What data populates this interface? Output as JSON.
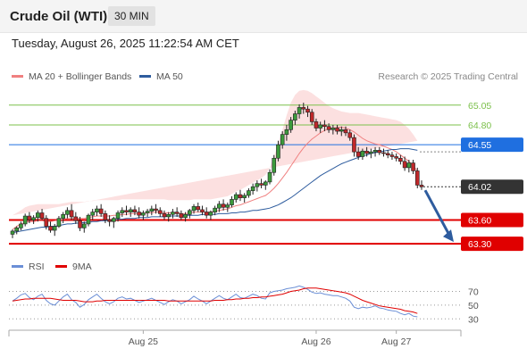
{
  "header": {
    "instrument": "Crude Oil (WTI)",
    "timeframe": "30 MIN",
    "datetime": "Tuesday, August 26, 2025 11:22:54 AM CET"
  },
  "legend": {
    "items": [
      {
        "label": "MA 20 + Bollinger Bands",
        "color": "#f08080"
      },
      {
        "label": "MA 50",
        "color": "#2e5c9e"
      }
    ],
    "credit": "Research © 2025 Trading Central"
  },
  "rsi_legend": {
    "items": [
      {
        "label": "RSI",
        "color": "#6b8fd6"
      },
      {
        "label": "9MA",
        "color": "#e00000"
      }
    ]
  },
  "chart_data": [
    {
      "type": "candlestick",
      "title": "Crude Oil (WTI)",
      "ylim": [
        63.2,
        65.25
      ],
      "x_tick_labels": [
        "Aug 25",
        "Aug 26",
        "Aug 27"
      ],
      "levels": [
        {
          "value": 65.05,
          "label": "65.05",
          "color": "#7cc04b",
          "kind": "target",
          "has_box": false
        },
        {
          "value": 64.8,
          "label": "64.80",
          "color": "#7cc04b",
          "kind": "target",
          "has_box": false
        },
        {
          "value": 64.55,
          "label": "64.55",
          "color": "#1f6fe0",
          "kind": "pivot",
          "has_box": true
        },
        {
          "value": 64.02,
          "label": "64.02",
          "color": "#333333",
          "kind": "last",
          "has_box": true
        },
        {
          "value": 63.6,
          "label": "63.60",
          "color": "#e00000",
          "kind": "support",
          "has_box": true
        },
        {
          "value": 63.3,
          "label": "63.30",
          "color": "#e00000",
          "kind": "support",
          "has_box": true
        }
      ],
      "projection": {
        "from": 64.02,
        "to": 63.3,
        "color": "#2e5c9e"
      },
      "candles": [
        [
          63.42,
          63.48,
          63.37,
          63.46
        ],
        [
          63.46,
          63.52,
          63.42,
          63.5
        ],
        [
          63.5,
          63.58,
          63.47,
          63.55
        ],
        [
          63.55,
          63.68,
          63.52,
          63.65
        ],
        [
          63.65,
          63.7,
          63.56,
          63.6
        ],
        [
          63.6,
          63.66,
          63.55,
          63.63
        ],
        [
          63.63,
          63.72,
          63.58,
          63.69
        ],
        [
          63.69,
          63.74,
          63.6,
          63.62
        ],
        [
          63.62,
          63.66,
          63.48,
          63.52
        ],
        [
          63.52,
          63.58,
          63.44,
          63.47
        ],
        [
          63.47,
          63.55,
          63.4,
          63.52
        ],
        [
          63.52,
          63.65,
          63.5,
          63.62
        ],
        [
          63.62,
          63.7,
          63.56,
          63.67
        ],
        [
          63.67,
          63.76,
          63.62,
          63.72
        ],
        [
          63.72,
          63.8,
          63.6,
          63.64
        ],
        [
          63.64,
          63.7,
          63.55,
          63.59
        ],
        [
          63.59,
          63.64,
          63.46,
          63.5
        ],
        [
          63.5,
          63.58,
          63.44,
          63.55
        ],
        [
          63.55,
          63.68,
          63.52,
          63.66
        ],
        [
          63.66,
          63.74,
          63.6,
          63.7
        ],
        [
          63.7,
          63.78,
          63.65,
          63.74
        ],
        [
          63.74,
          63.8,
          63.64,
          63.68
        ],
        [
          63.68,
          63.72,
          63.56,
          63.6
        ],
        [
          63.6,
          63.66,
          63.52,
          63.58
        ],
        [
          63.58,
          63.64,
          63.5,
          63.62
        ],
        [
          63.62,
          63.72,
          63.58,
          63.69
        ],
        [
          63.69,
          63.76,
          63.64,
          63.72
        ],
        [
          63.72,
          63.78,
          63.66,
          63.7
        ],
        [
          63.7,
          63.76,
          63.64,
          63.73
        ],
        [
          63.73,
          63.78,
          63.66,
          63.7
        ],
        [
          63.7,
          63.76,
          63.62,
          63.66
        ],
        [
          63.66,
          63.72,
          63.6,
          63.69
        ],
        [
          63.69,
          63.74,
          63.64,
          63.71
        ],
        [
          63.71,
          63.78,
          63.66,
          63.74
        ],
        [
          63.74,
          63.8,
          63.68,
          63.72
        ],
        [
          63.72,
          63.76,
          63.64,
          63.68
        ],
        [
          63.68,
          63.72,
          63.6,
          63.64
        ],
        [
          63.64,
          63.7,
          63.58,
          63.67
        ],
        [
          63.67,
          63.74,
          63.62,
          63.7
        ],
        [
          63.7,
          63.76,
          63.64,
          63.68
        ],
        [
          63.68,
          63.72,
          63.6,
          63.63
        ],
        [
          63.63,
          63.7,
          63.58,
          63.67
        ],
        [
          63.67,
          63.74,
          63.62,
          63.72
        ],
        [
          63.72,
          63.8,
          63.68,
          63.77
        ],
        [
          63.77,
          63.82,
          63.7,
          63.73
        ],
        [
          63.73,
          63.78,
          63.66,
          63.7
        ],
        [
          63.7,
          63.76,
          63.62,
          63.66
        ],
        [
          63.66,
          63.72,
          63.6,
          63.7
        ],
        [
          63.7,
          63.78,
          63.66,
          63.75
        ],
        [
          63.75,
          63.84,
          63.7,
          63.8
        ],
        [
          63.8,
          63.86,
          63.72,
          63.76
        ],
        [
          63.76,
          63.82,
          63.7,
          63.79
        ],
        [
          63.79,
          63.9,
          63.76,
          63.86
        ],
        [
          63.86,
          63.95,
          63.82,
          63.92
        ],
        [
          63.92,
          63.98,
          63.84,
          63.88
        ],
        [
          63.88,
          63.94,
          63.82,
          63.91
        ],
        [
          63.91,
          64.0,
          63.88,
          63.97
        ],
        [
          63.97,
          64.06,
          63.92,
          64.02
        ],
        [
          64.02,
          64.1,
          63.96,
          64.06
        ],
        [
          64.06,
          64.12,
          64.0,
          64.04
        ],
        [
          64.04,
          64.1,
          63.98,
          64.08
        ],
        [
          64.08,
          64.24,
          64.05,
          64.2
        ],
        [
          64.2,
          64.42,
          64.16,
          64.38
        ],
        [
          64.38,
          64.6,
          64.34,
          64.55
        ],
        [
          64.55,
          64.72,
          64.5,
          64.68
        ],
        [
          64.68,
          64.8,
          64.6,
          64.74
        ],
        [
          64.74,
          64.9,
          64.7,
          64.86
        ],
        [
          64.86,
          64.98,
          64.8,
          64.94
        ],
        [
          64.94,
          65.06,
          64.88,
          65.02
        ],
        [
          65.02,
          65.08,
          64.94,
          65.0
        ],
        [
          65.0,
          65.04,
          64.9,
          64.96
        ],
        [
          64.96,
          65.0,
          64.8,
          64.84
        ],
        [
          64.84,
          64.88,
          64.72,
          64.76
        ],
        [
          64.76,
          64.84,
          64.7,
          64.8
        ],
        [
          64.8,
          64.86,
          64.72,
          64.78
        ],
        [
          64.78,
          64.82,
          64.7,
          64.74
        ],
        [
          64.74,
          64.8,
          64.68,
          64.76
        ],
        [
          64.76,
          64.8,
          64.68,
          64.72
        ],
        [
          64.72,
          64.78,
          64.66,
          64.74
        ],
        [
          64.74,
          64.78,
          64.66,
          64.7
        ],
        [
          64.7,
          64.74,
          64.6,
          64.64
        ],
        [
          64.64,
          64.68,
          64.4,
          64.46
        ],
        [
          64.46,
          64.52,
          64.36,
          64.4
        ],
        [
          64.4,
          64.5,
          64.36,
          64.47
        ],
        [
          64.47,
          64.52,
          64.4,
          64.44
        ],
        [
          64.44,
          64.5,
          64.38,
          64.46
        ],
        [
          64.46,
          64.52,
          64.4,
          64.48
        ],
        [
          64.48,
          64.52,
          64.42,
          64.45
        ],
        [
          64.45,
          64.5,
          64.4,
          64.44
        ],
        [
          64.44,
          64.48,
          64.38,
          64.42
        ],
        [
          64.42,
          64.46,
          64.36,
          64.4
        ],
        [
          64.4,
          64.44,
          64.34,
          64.38
        ],
        [
          64.38,
          64.42,
          64.3,
          64.34
        ],
        [
          64.34,
          64.4,
          64.22,
          64.26
        ],
        [
          64.26,
          64.36,
          64.2,
          64.32
        ],
        [
          64.32,
          64.36,
          64.18,
          64.22
        ],
        [
          64.22,
          64.26,
          64.0,
          64.04
        ],
        [
          64.04,
          64.1,
          63.98,
          64.02
        ]
      ],
      "bollinger_mid": [
        63.48,
        63.52,
        63.55,
        63.57,
        63.58,
        63.58,
        63.59,
        63.59,
        63.58,
        63.58,
        63.59,
        63.6,
        63.61,
        63.62,
        63.62,
        63.62,
        63.62,
        63.62,
        63.63,
        63.64,
        63.65,
        63.65,
        63.65,
        63.65,
        63.66,
        63.66,
        63.67,
        63.67,
        63.68,
        63.68,
        63.68,
        63.68,
        63.69,
        63.69,
        63.7,
        63.7,
        63.69,
        63.69,
        63.69,
        63.69,
        63.68,
        63.68,
        63.69,
        63.7,
        63.7,
        63.7,
        63.7,
        63.7,
        63.71,
        63.72,
        63.73,
        63.74,
        63.76,
        63.78,
        63.79,
        63.81,
        63.83,
        63.85,
        63.87,
        63.89,
        63.91,
        63.95,
        64.0,
        64.06,
        64.13,
        64.2,
        64.28,
        64.36,
        64.44,
        64.51,
        64.57,
        64.62,
        64.66,
        64.7,
        64.73,
        64.75,
        64.76,
        64.77,
        64.77,
        64.76,
        64.74,
        64.71,
        64.67,
        64.63,
        64.6,
        64.58,
        64.56,
        64.55,
        64.53,
        64.51,
        64.49,
        64.46,
        64.42,
        64.38,
        64.34,
        64.28,
        64.22
      ],
      "bollinger_upper": [
        63.66,
        63.69,
        63.72,
        63.76,
        63.78,
        63.79,
        63.8,
        63.8,
        63.8,
        63.8,
        63.8,
        63.8,
        63.81,
        63.82,
        63.83,
        63.83,
        63.83,
        63.83,
        63.84,
        63.84,
        63.85,
        63.85,
        63.85,
        63.85,
        63.85,
        63.85,
        63.86,
        63.86,
        63.86,
        63.86,
        63.86,
        63.86,
        63.86,
        63.86,
        63.86,
        63.86,
        63.86,
        63.85,
        63.85,
        63.85,
        63.85,
        63.85,
        63.85,
        63.86,
        63.86,
        63.86,
        63.86,
        63.86,
        63.87,
        63.88,
        63.89,
        63.9,
        63.93,
        63.96,
        63.98,
        64.01,
        64.04,
        64.07,
        64.1,
        64.13,
        64.17,
        64.26,
        64.4,
        64.56,
        64.74,
        64.92,
        65.08,
        65.18,
        65.23,
        65.24,
        65.23,
        65.2,
        65.16,
        65.12,
        65.08,
        65.04,
        65.01,
        64.99,
        64.97,
        64.96,
        64.95,
        64.95,
        64.95,
        64.94,
        64.93,
        64.92,
        64.91,
        64.9,
        64.89,
        64.88,
        64.87,
        64.86,
        64.84,
        64.8,
        64.75,
        64.68,
        64.6
      ],
      "bollinger_lower": [
        63.3,
        63.32,
        63.35,
        63.38,
        63.4,
        63.41,
        63.42,
        63.43,
        63.43,
        63.43,
        63.43,
        63.44,
        63.45,
        63.46,
        63.46,
        63.46,
        63.46,
        63.46,
        63.47,
        63.48,
        63.49,
        63.5,
        63.5,
        63.51,
        63.52,
        63.52,
        63.53,
        63.53,
        63.54,
        63.54,
        63.55,
        63.55,
        63.55,
        63.56,
        63.56,
        63.56,
        63.56,
        63.55,
        63.55,
        63.55,
        63.54,
        63.54,
        63.55,
        63.55,
        63.56,
        63.56,
        63.56,
        63.57,
        63.57,
        63.58,
        63.58,
        63.59,
        63.6,
        63.61,
        63.62,
        63.63,
        63.63,
        63.64,
        63.65,
        63.66,
        63.66,
        63.66,
        63.64,
        63.62,
        63.6,
        63.58,
        63.57,
        63.58,
        63.62,
        63.7,
        63.82,
        63.96,
        64.1,
        64.24,
        64.36,
        64.46,
        64.52,
        64.56,
        64.58,
        64.58,
        64.56,
        64.48,
        64.4,
        64.34,
        64.3,
        64.28,
        64.26,
        64.24,
        64.22,
        64.2,
        64.18,
        64.14,
        64.1,
        64.05,
        64.0,
        63.95,
        63.9
      ],
      "ma50": [
        63.44,
        63.45,
        63.46,
        63.47,
        63.48,
        63.49,
        63.5,
        63.51,
        63.51,
        63.52,
        63.52,
        63.53,
        63.54,
        63.55,
        63.55,
        63.56,
        63.56,
        63.57,
        63.57,
        63.58,
        63.58,
        63.59,
        63.59,
        63.6,
        63.6,
        63.61,
        63.61,
        63.62,
        63.62,
        63.62,
        63.63,
        63.63,
        63.63,
        63.64,
        63.64,
        63.64,
        63.64,
        63.65,
        63.65,
        63.65,
        63.65,
        63.66,
        63.66,
        63.66,
        63.66,
        63.67,
        63.67,
        63.67,
        63.67,
        63.68,
        63.68,
        63.68,
        63.69,
        63.69,
        63.7,
        63.7,
        63.71,
        63.72,
        63.72,
        63.73,
        63.74,
        63.75,
        63.77,
        63.79,
        63.82,
        63.85,
        63.88,
        63.92,
        63.96,
        64.0,
        64.04,
        64.08,
        64.12,
        64.16,
        64.19,
        64.22,
        64.25,
        64.28,
        64.31,
        64.33,
        64.35,
        64.37,
        64.39,
        64.41,
        64.42,
        64.44,
        64.45,
        64.46,
        64.47,
        64.48,
        64.49,
        64.49,
        64.5,
        64.5,
        64.5,
        64.49,
        64.48
      ]
    },
    {
      "type": "line",
      "title": "",
      "ylim": [
        20,
        85
      ],
      "y_ticks": [
        30,
        50,
        70
      ],
      "series": [
        {
          "name": "RSI",
          "color": "#6b8fd6",
          "values": [
            56,
            60,
            65,
            67,
            61,
            58,
            63,
            66,
            57,
            52,
            50,
            56,
            62,
            66,
            58,
            54,
            47,
            51,
            58,
            62,
            66,
            60,
            55,
            52,
            55,
            60,
            62,
            59,
            60,
            57,
            54,
            56,
            58,
            60,
            57,
            54,
            51,
            55,
            58,
            56,
            52,
            55,
            58,
            63,
            59,
            56,
            52,
            56,
            60,
            64,
            60,
            58,
            62,
            66,
            61,
            60,
            63,
            66,
            64,
            60,
            59,
            68,
            70,
            71,
            72,
            74,
            75,
            76,
            78,
            76,
            73,
            69,
            67,
            68,
            66,
            65,
            64,
            64,
            62,
            60,
            56,
            47,
            45,
            47,
            46,
            47,
            49,
            46,
            45,
            43,
            42,
            41,
            38,
            36,
            38,
            34,
            33
          ]
        },
        {
          "name": "9MA",
          "color": "#e00000",
          "values": [
            56,
            57,
            58,
            59,
            59,
            60,
            60,
            60,
            60,
            60,
            59,
            58,
            57,
            57,
            57,
            57,
            56,
            55,
            55,
            55,
            56,
            56,
            57,
            57,
            57,
            57,
            57,
            57,
            57,
            57,
            57,
            57,
            57,
            57,
            57,
            57,
            57,
            56,
            56,
            56,
            56,
            56,
            56,
            56,
            56,
            56,
            56,
            56,
            57,
            57,
            57,
            58,
            58,
            59,
            59,
            60,
            60,
            61,
            61,
            62,
            62,
            63,
            64,
            65,
            66,
            68,
            70,
            71,
            72,
            74,
            75,
            75,
            75,
            74,
            73,
            72,
            71,
            70,
            69,
            68,
            66,
            63,
            60,
            57,
            55,
            53,
            51,
            49,
            48,
            47,
            46,
            45,
            44,
            42,
            41,
            40,
            38
          ]
        }
      ]
    }
  ]
}
